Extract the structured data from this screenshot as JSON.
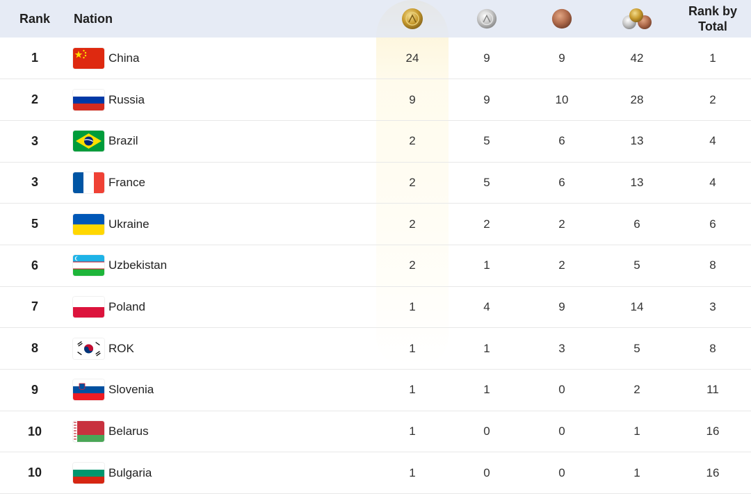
{
  "header": {
    "rank": "Rank",
    "nation": "Nation",
    "gold_icon": "gold-medal-icon",
    "silver_icon": "silver-medal-icon",
    "bronze_icon": "bronze-medal-icon",
    "total_icon": "medal-stack-icon",
    "rank_by_total": "Rank by Total"
  },
  "colors": {
    "header_bg": "#e2e8f3",
    "gold": "#c9a227",
    "silver": "#b9b9b9",
    "bronze": "#b66e4f",
    "row_divider": "#e8e8e8"
  },
  "rows": [
    {
      "rank": "1",
      "nation": "China",
      "flag": "china-flag-icon",
      "gold": "24",
      "silver": "9",
      "bronze": "9",
      "total": "42",
      "rank_by_total": "1"
    },
    {
      "rank": "2",
      "nation": "Russia",
      "flag": "russia-flag-icon",
      "gold": "9",
      "silver": "9",
      "bronze": "10",
      "total": "28",
      "rank_by_total": "2"
    },
    {
      "rank": "3",
      "nation": "Brazil",
      "flag": "brazil-flag-icon",
      "gold": "2",
      "silver": "5",
      "bronze": "6",
      "total": "13",
      "rank_by_total": "4"
    },
    {
      "rank": "3",
      "nation": "France",
      "flag": "france-flag-icon",
      "gold": "2",
      "silver": "5",
      "bronze": "6",
      "total": "13",
      "rank_by_total": "4"
    },
    {
      "rank": "5",
      "nation": "Ukraine",
      "flag": "ukraine-flag-icon",
      "gold": "2",
      "silver": "2",
      "bronze": "2",
      "total": "6",
      "rank_by_total": "6"
    },
    {
      "rank": "6",
      "nation": "Uzbekistan",
      "flag": "uzbekistan-flag-icon",
      "gold": "2",
      "silver": "1",
      "bronze": "2",
      "total": "5",
      "rank_by_total": "8"
    },
    {
      "rank": "7",
      "nation": "Poland",
      "flag": "poland-flag-icon",
      "gold": "1",
      "silver": "4",
      "bronze": "9",
      "total": "14",
      "rank_by_total": "3"
    },
    {
      "rank": "8",
      "nation": "ROK",
      "flag": "korea-flag-icon",
      "gold": "1",
      "silver": "1",
      "bronze": "3",
      "total": "5",
      "rank_by_total": "8"
    },
    {
      "rank": "9",
      "nation": "Slovenia",
      "flag": "slovenia-flag-icon",
      "gold": "1",
      "silver": "1",
      "bronze": "0",
      "total": "2",
      "rank_by_total": "11"
    },
    {
      "rank": "10",
      "nation": "Belarus",
      "flag": "belarus-flag-icon",
      "gold": "1",
      "silver": "0",
      "bronze": "0",
      "total": "1",
      "rank_by_total": "16"
    },
    {
      "rank": "10",
      "nation": "Bulgaria",
      "flag": "bulgaria-flag-icon",
      "gold": "1",
      "silver": "0",
      "bronze": "0",
      "total": "1",
      "rank_by_total": "16"
    }
  ]
}
